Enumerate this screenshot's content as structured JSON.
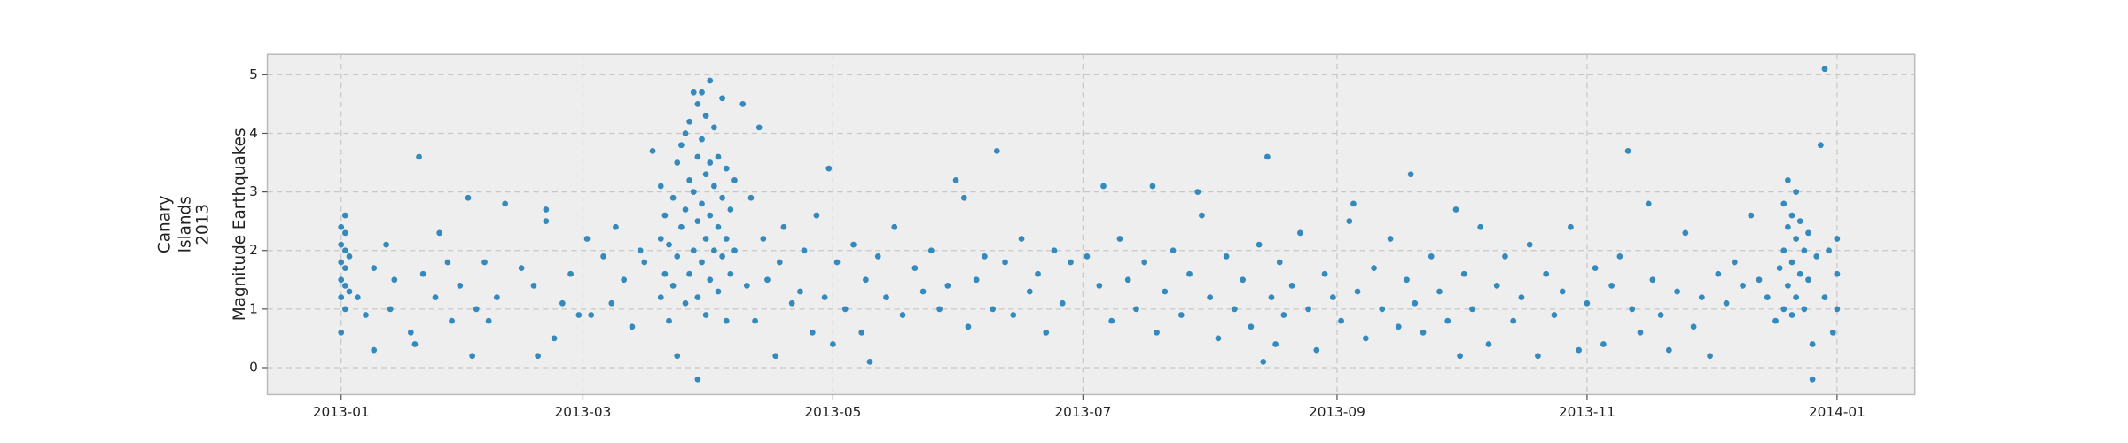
{
  "chart_data": {
    "type": "scatter",
    "ylabel_lines": [
      "Canary",
      "Islands",
      "2013",
      "Magnitude Earthquakes"
    ],
    "color": "#348abd",
    "grid": true,
    "xlim": [
      -18,
      384
    ],
    "ylim": [
      -0.46,
      5.35
    ],
    "xticks": [
      {
        "value": 0,
        "label": "2013-01"
      },
      {
        "value": 59,
        "label": "2013-03"
      },
      {
        "value": 120,
        "label": "2013-05"
      },
      {
        "value": 181,
        "label": "2013-07"
      },
      {
        "value": 243,
        "label": "2013-09"
      },
      {
        "value": 304,
        "label": "2013-11"
      },
      {
        "value": 365,
        "label": "2014-01"
      }
    ],
    "yticks": [
      0,
      1,
      2,
      3,
      4,
      5
    ],
    "x": [
      0,
      0,
      0,
      0,
      0,
      0,
      1,
      1,
      1,
      1,
      1,
      1,
      2,
      2,
      4,
      6,
      8,
      8,
      11,
      12,
      13,
      17,
      18,
      19,
      20,
      23,
      24,
      26,
      27,
      29,
      31,
      32,
      33,
      35,
      36,
      38,
      40,
      44,
      47,
      48,
      50,
      50,
      52,
      54,
      56,
      58,
      60,
      61,
      64,
      66,
      67,
      69,
      71,
      73,
      74,
      76,
      78,
      78,
      78,
      79,
      79,
      80,
      80,
      81,
      81,
      82,
      82,
      82,
      83,
      83,
      84,
      84,
      84,
      85,
      85,
      85,
      86,
      86,
      86,
      87,
      87,
      87,
      87,
      87,
      88,
      88,
      88,
      88,
      89,
      89,
      89,
      89,
      90,
      90,
      90,
      90,
      91,
      91,
      91,
      92,
      92,
      92,
      93,
      93,
      93,
      94,
      94,
      94,
      95,
      95,
      96,
      96,
      98,
      99,
      100,
      101,
      102,
      103,
      104,
      106,
      107,
      108,
      110,
      112,
      113,
      115,
      116,
      118,
      119,
      120,
      121,
      123,
      125,
      127,
      128,
      129,
      131,
      133,
      135,
      137,
      140,
      142,
      144,
      146,
      148,
      150,
      152,
      153,
      155,
      157,
      159,
      160,
      162,
      164,
      166,
      168,
      170,
      172,
      174,
      176,
      178,
      182,
      185,
      186,
      188,
      190,
      192,
      194,
      196,
      198,
      199,
      201,
      203,
      205,
      207,
      209,
      210,
      212,
      214,
      216,
      218,
      220,
      222,
      224,
      225,
      226,
      227,
      228,
      229,
      230,
      232,
      234,
      236,
      238,
      240,
      242,
      244,
      246,
      247,
      248,
      250,
      252,
      254,
      256,
      258,
      260,
      261,
      262,
      264,
      266,
      268,
      270,
      272,
      273,
      274,
      276,
      278,
      280,
      282,
      284,
      286,
      288,
      290,
      292,
      294,
      296,
      298,
      300,
      302,
      304,
      306,
      308,
      310,
      312,
      314,
      315,
      317,
      319,
      320,
      322,
      324,
      326,
      328,
      330,
      332,
      334,
      336,
      338,
      340,
      342,
      344,
      346,
      348,
      350,
      351,
      352,
      352,
      352,
      353,
      353,
      353,
      354,
      354,
      354,
      355,
      355,
      355,
      356,
      356,
      357,
      357,
      358,
      358,
      359,
      359,
      360,
      361,
      362,
      362,
      363,
      364,
      365,
      365,
      365
    ],
    "values": [
      0.6,
      1.2,
      1.5,
      1.8,
      2.1,
      2.4,
      1.0,
      1.4,
      1.7,
      2.0,
      2.3,
      2.6,
      1.3,
      1.9,
      1.2,
      0.9,
      0.3,
      1.7,
      2.1,
      1.0,
      1.5,
      0.6,
      0.4,
      3.6,
      1.6,
      1.2,
      2.3,
      1.8,
      0.8,
      1.4,
      2.9,
      0.2,
      1.0,
      1.8,
      0.8,
      1.2,
      2.8,
      1.7,
      1.4,
      0.2,
      2.7,
      2.5,
      0.5,
      1.1,
      1.6,
      0.9,
      2.2,
      0.9,
      1.9,
      1.1,
      2.4,
      1.5,
      0.7,
      2.0,
      1.8,
      3.7,
      2.2,
      1.2,
      3.1,
      1.6,
      2.6,
      0.8,
      2.1,
      1.4,
      2.9,
      0.2,
      1.9,
      3.5,
      2.4,
      3.8,
      1.1,
      2.7,
      4.0,
      1.6,
      3.2,
      4.2,
      2.0,
      3.0,
      4.7,
      -0.2,
      1.2,
      2.5,
      3.6,
      4.5,
      1.8,
      2.8,
      3.9,
      4.7,
      0.9,
      2.2,
      3.3,
      4.3,
      1.5,
      2.6,
      3.5,
      4.9,
      2.0,
      3.1,
      4.1,
      1.3,
      2.4,
      3.6,
      1.9,
      2.9,
      4.6,
      0.8,
      2.2,
      3.4,
      1.6,
      2.7,
      2.0,
      3.2,
      4.5,
      1.4,
      2.9,
      0.8,
      4.1,
      2.2,
      1.5,
      0.2,
      1.8,
      2.4,
      1.1,
      1.3,
      2.0,
      0.6,
      2.6,
      1.2,
      3.4,
      0.4,
      1.8,
      1.0,
      2.1,
      0.6,
      1.5,
      0.1,
      1.9,
      1.2,
      2.4,
      0.9,
      1.7,
      1.3,
      2.0,
      1.0,
      1.4,
      3.2,
      2.9,
      0.7,
      1.5,
      1.9,
      1.0,
      3.7,
      1.8,
      0.9,
      2.2,
      1.3,
      1.6,
      0.6,
      2.0,
      1.1,
      1.8,
      1.9,
      1.4,
      3.1,
      0.8,
      2.2,
      1.5,
      1.0,
      1.8,
      3.1,
      0.6,
      1.3,
      2.0,
      0.9,
      1.6,
      3.0,
      2.6,
      1.2,
      0.5,
      1.9,
      1.0,
      1.5,
      0.7,
      2.1,
      0.1,
      3.6,
      1.2,
      0.4,
      1.8,
      0.9,
      1.4,
      2.3,
      1.0,
      0.3,
      1.6,
      1.2,
      0.8,
      2.5,
      2.8,
      1.3,
      0.5,
      1.7,
      1.0,
      2.2,
      0.7,
      1.5,
      3.3,
      1.1,
      0.6,
      1.9,
      1.3,
      0.8,
      2.7,
      0.2,
      1.6,
      1.0,
      2.4,
      0.4,
      1.4,
      1.9,
      0.8,
      1.2,
      2.1,
      0.2,
      1.6,
      0.9,
      1.3,
      2.4,
      0.3,
      1.1,
      1.7,
      0.4,
      1.4,
      1.9,
      3.7,
      1.0,
      0.6,
      2.8,
      1.5,
      0.9,
      0.3,
      1.3,
      2.3,
      0.7,
      1.2,
      0.2,
      1.6,
      1.1,
      1.8,
      1.4,
      2.6,
      1.5,
      1.2,
      0.8,
      1.7,
      1.0,
      2.0,
      2.8,
      1.4,
      2.4,
      3.2,
      0.9,
      1.8,
      2.6,
      1.2,
      2.2,
      3.0,
      1.6,
      2.5,
      1.0,
      2.0,
      1.5,
      2.3,
      -0.2,
      0.4,
      1.9,
      3.8,
      5.1,
      1.2,
      2.0,
      0.6,
      1.0,
      2.2,
      1.6
    ]
  }
}
